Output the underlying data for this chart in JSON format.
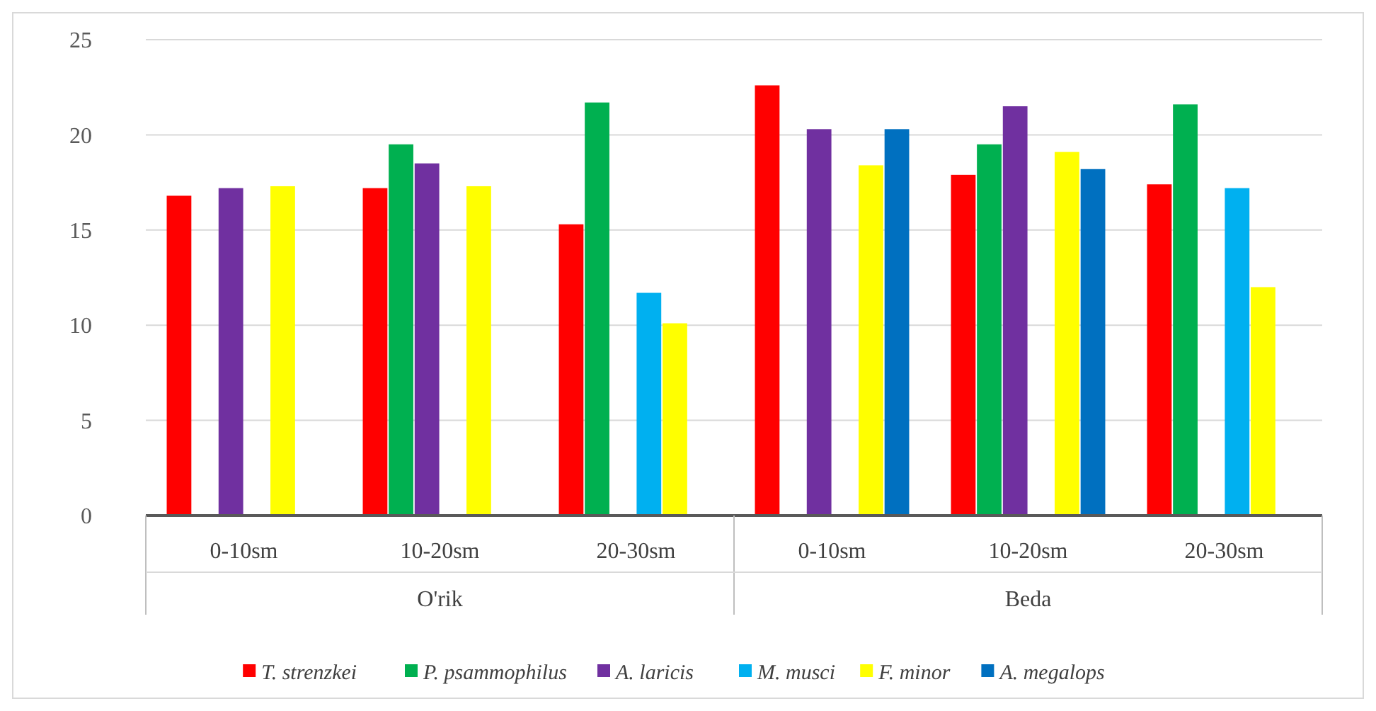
{
  "chart_data": {
    "type": "bar",
    "categories": [
      "0-10sm",
      "10-20sm",
      "20-30sm",
      "0-10sm",
      "10-20sm",
      "20-30sm"
    ],
    "annotations": [
      "O'rik",
      "Beda"
    ],
    "series": [
      {
        "name": "T. strenzkei",
        "color": "#ff0000",
        "values": [
          16.8,
          17.2,
          15.3,
          22.6,
          17.9,
          17.4
        ]
      },
      {
        "name": "P. psammophilus",
        "color": "#00b050",
        "values": [
          null,
          19.5,
          21.7,
          null,
          19.5,
          21.6
        ]
      },
      {
        "name": "A. laricis",
        "color": "#7030a0",
        "values": [
          17.2,
          18.5,
          null,
          20.3,
          21.5,
          null
        ]
      },
      {
        "name": "M. musci",
        "color": "#00b0f0",
        "values": [
          null,
          null,
          11.7,
          null,
          null,
          17.2
        ]
      },
      {
        "name": "F. minor",
        "color": "#ffff00",
        "values": [
          17.3,
          17.3,
          10.1,
          18.4,
          19.1,
          12.0
        ]
      },
      {
        "name": "A. megalops",
        "color": "#0070c0",
        "values": [
          null,
          null,
          null,
          20.3,
          18.2,
          null
        ]
      }
    ],
    "ylim": [
      0,
      25
    ],
    "yticks": [
      0,
      5,
      10,
      15,
      20,
      25
    ],
    "grid": "y",
    "legend": "bottom"
  }
}
